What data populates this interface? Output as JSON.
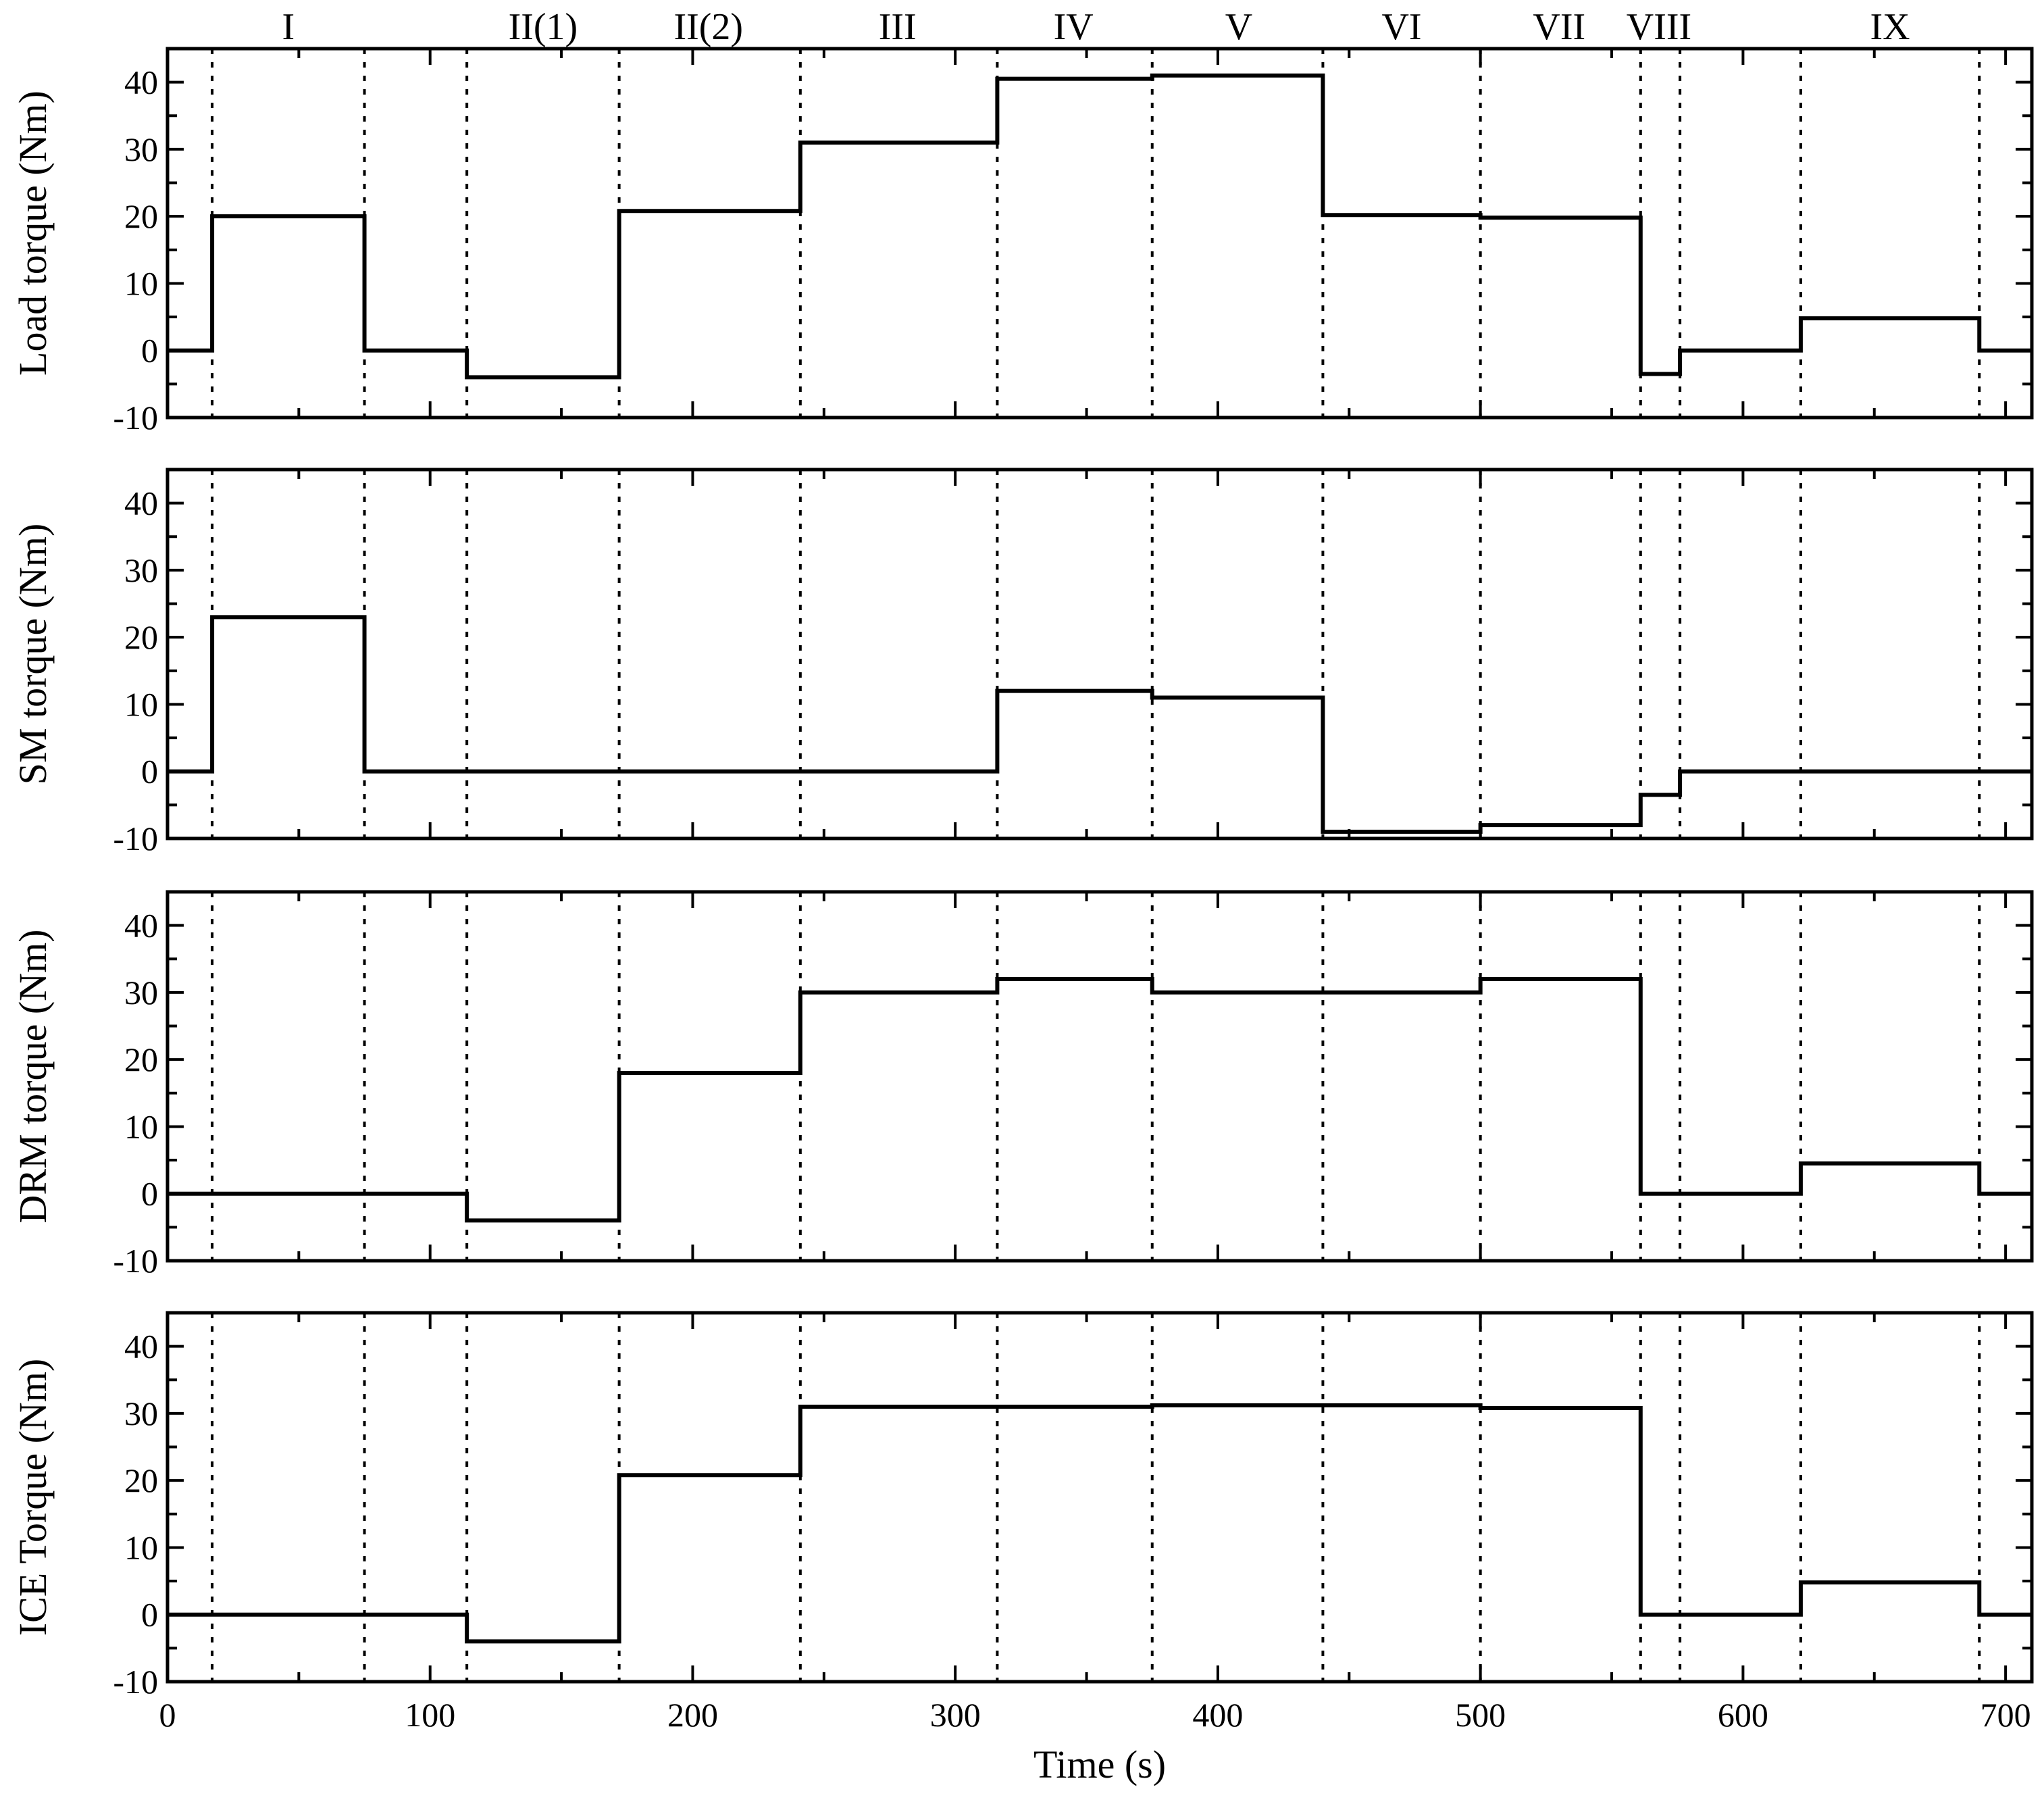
{
  "chart_data": {
    "type": "line",
    "xlabel": "Time (s)",
    "xlim": [
      0,
      710
    ],
    "xticks": [
      0,
      100,
      200,
      300,
      400,
      500,
      600,
      700
    ],
    "yticks": [
      -10,
      0,
      10,
      20,
      30,
      40
    ],
    "phase_boundaries": [
      17,
      75,
      114,
      172,
      241,
      316,
      375,
      440,
      500,
      561,
      576,
      622,
      690
    ],
    "phases": [
      {
        "label": "I",
        "x": 46
      },
      {
        "label": "II(1)",
        "x": 143
      },
      {
        "label": "II(2)",
        "x": 206
      },
      {
        "label": "III",
        "x": 278
      },
      {
        "label": "IV",
        "x": 345
      },
      {
        "label": "V",
        "x": 408
      },
      {
        "label": "VI",
        "x": 470
      },
      {
        "label": "VII",
        "x": 530
      },
      {
        "label": "VIII",
        "x": 568
      },
      {
        "label": "IX",
        "x": 656
      }
    ],
    "panels": [
      {
        "ylabel": "Load torque (Nm)",
        "ylim": [
          -10,
          45
        ],
        "segments": [
          [
            0,
            0
          ],
          [
            17,
            20
          ],
          [
            75,
            0
          ],
          [
            114,
            -4
          ],
          [
            172,
            20.8
          ],
          [
            241,
            31
          ],
          [
            316,
            40.5
          ],
          [
            375,
            41
          ],
          [
            440,
            20.2
          ],
          [
            500,
            19.8
          ],
          [
            561,
            -3.5
          ],
          [
            576,
            0
          ],
          [
            622,
            4.8
          ],
          [
            690,
            0
          ]
        ]
      },
      {
        "ylabel": "SM torque (Nm)",
        "ylim": [
          -10,
          45
        ],
        "segments": [
          [
            0,
            0
          ],
          [
            17,
            23
          ],
          [
            75,
            0
          ],
          [
            316,
            12
          ],
          [
            375,
            11
          ],
          [
            440,
            -9
          ],
          [
            500,
            -8
          ],
          [
            561,
            -3.5
          ],
          [
            576,
            0
          ]
        ]
      },
      {
        "ylabel": "DRM torque (Nm)",
        "ylim": [
          -10,
          45
        ],
        "segments": [
          [
            0,
            0
          ],
          [
            114,
            -4
          ],
          [
            172,
            18
          ],
          [
            241,
            30
          ],
          [
            316,
            32
          ],
          [
            375,
            30
          ],
          [
            500,
            32
          ],
          [
            561,
            0
          ],
          [
            622,
            4.5
          ],
          [
            690,
            0
          ]
        ]
      },
      {
        "ylabel": "ICE Torque (Nm)",
        "ylim": [
          -10,
          45
        ],
        "segments": [
          [
            0,
            0
          ],
          [
            114,
            -4
          ],
          [
            172,
            20.8
          ],
          [
            241,
            31
          ],
          [
            316,
            31
          ],
          [
            375,
            31.2
          ],
          [
            500,
            30.8
          ],
          [
            561,
            0
          ],
          [
            622,
            4.8
          ],
          [
            690,
            0
          ]
        ]
      }
    ]
  }
}
